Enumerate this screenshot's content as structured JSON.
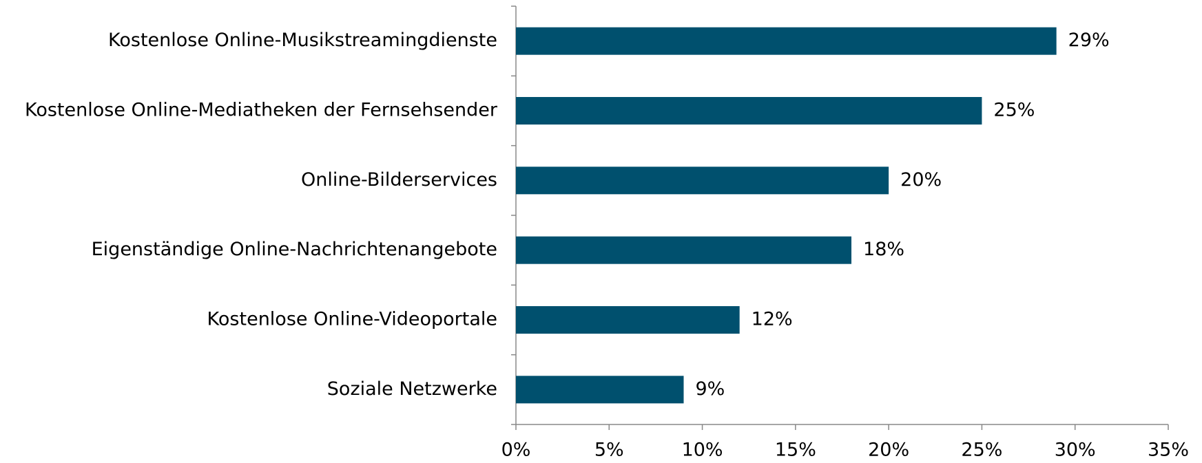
{
  "chart_data": {
    "type": "bar",
    "orientation": "horizontal",
    "categories": [
      "Kostenlose Online-Musikstreamingdienste",
      "Kostenlose Online-Mediatheken der Fernsehsender",
      "Online-Bilderservices",
      "Eigenständige Online-Nachrichtenangebote",
      "Kostenlose Online-Videoportale",
      "Soziale Netzwerke"
    ],
    "values": [
      29,
      25,
      20,
      18,
      12,
      9
    ],
    "value_labels": [
      "29%",
      "25%",
      "20%",
      "18%",
      "12%",
      "9%"
    ],
    "color": "#00506e",
    "xlim": [
      0,
      35
    ],
    "xticks": [
      {
        "value": 0,
        "label": "0%"
      },
      {
        "value": 5,
        "label": "5%"
      },
      {
        "value": 10,
        "label": "10%"
      },
      {
        "value": 15,
        "label": "15%"
      },
      {
        "value": 20,
        "label": "20%"
      },
      {
        "value": 25,
        "label": "25%"
      },
      {
        "value": 30,
        "label": "30%"
      },
      {
        "value": 35,
        "label": "35%"
      }
    ],
    "grid": false
  }
}
